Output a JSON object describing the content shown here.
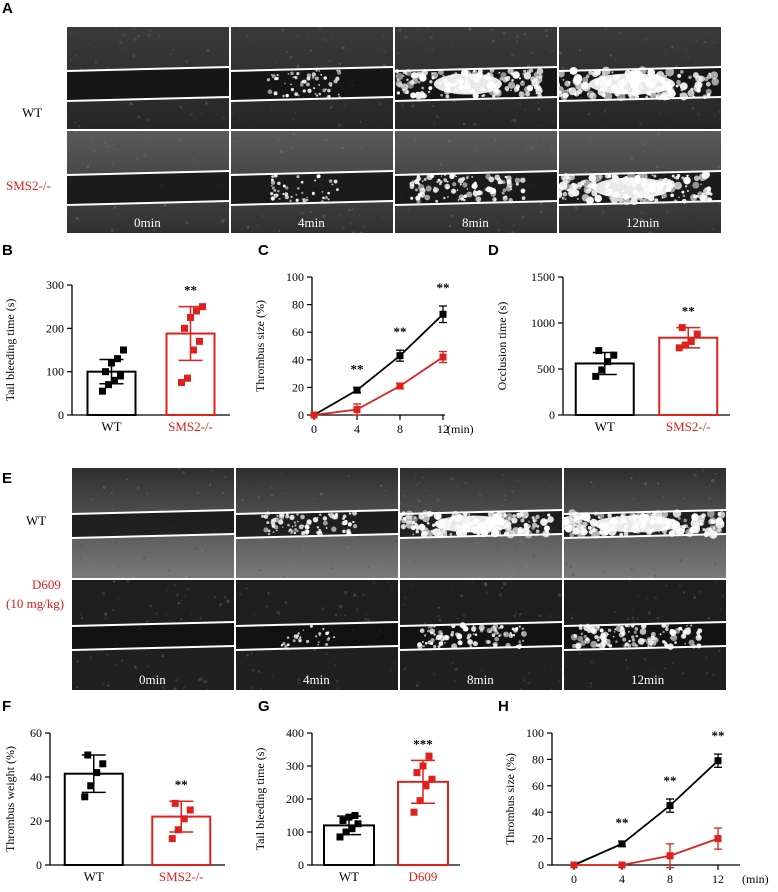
{
  "panels": {
    "A": {
      "letter": "A",
      "rows": [
        {
          "label": "WT",
          "color": "#000000"
        },
        {
          "label": "SMS2-/-",
          "color": "#e0201b"
        }
      ],
      "timepoints": [
        "0min",
        "4min",
        "8min",
        "12min"
      ],
      "thrombus_level": [
        [
          0,
          0.2,
          0.75,
          0.95
        ],
        [
          0,
          0.15,
          0.5,
          0.85
        ]
      ]
    },
    "E": {
      "letter": "E",
      "rows": [
        {
          "label": "WT",
          "color": "#000000"
        },
        {
          "label": "D609",
          "label2": "(10 mg/kg)",
          "color": "#e0201b"
        }
      ],
      "timepoints": [
        "0min",
        "4min",
        "8min",
        "12min"
      ],
      "thrombus_level": [
        [
          0,
          0.35,
          0.85,
          0.95
        ],
        [
          0,
          0.05,
          0.45,
          0.6
        ]
      ]
    }
  },
  "chart_data": [
    {
      "id": "B",
      "letter": "B",
      "type": "bar",
      "categories": [
        "WT",
        "SMS2-/-"
      ],
      "category_colors": [
        "#000000",
        "#e0201b"
      ],
      "values": [
        100,
        188
      ],
      "errors": [
        28,
        62
      ],
      "points": [
        [
          55,
          70,
          80,
          90,
          100,
          120,
          130,
          150
        ],
        [
          75,
          85,
          150,
          170,
          200,
          225,
          240,
          250
        ]
      ],
      "sig": "**",
      "ylabel": "Tail bleeding time (s)",
      "ylim": [
        0,
        300
      ],
      "yticks": [
        0,
        100,
        200,
        300
      ]
    },
    {
      "id": "C",
      "letter": "C",
      "type": "line",
      "x": [
        0,
        4,
        8,
        12
      ],
      "xticks": [
        "0",
        "4",
        "8",
        "12"
      ],
      "xunit": "(min)",
      "series": [
        {
          "color": "#000000",
          "values": [
            0,
            18,
            43,
            73
          ],
          "errors": [
            0,
            2,
            4,
            6
          ]
        },
        {
          "color": "#e0201b",
          "values": [
            0,
            4,
            21,
            42
          ],
          "errors": [
            0,
            4,
            2,
            4
          ]
        }
      ],
      "sig": [
        "",
        "**",
        "**",
        "**"
      ],
      "ylabel": "Thrombus size (%)",
      "ylim": [
        0,
        100
      ],
      "yticks": [
        0,
        20,
        40,
        60,
        80,
        100
      ]
    },
    {
      "id": "D",
      "letter": "D",
      "type": "bar",
      "categories": [
        "WT",
        "SMS2-/-"
      ],
      "category_colors": [
        "#000000",
        "#e0201b"
      ],
      "values": [
        560,
        840
      ],
      "errors": [
        120,
        110
      ],
      "points": [
        [
          420,
          490,
          580,
          650,
          700
        ],
        [
          730,
          760,
          800,
          880,
          950
        ]
      ],
      "sig": "**",
      "ylabel": "Occlusion time (s)",
      "ylim": [
        0,
        1500
      ],
      "yticks": [
        0,
        500,
        1000,
        1500
      ]
    },
    {
      "id": "F",
      "letter": "F",
      "type": "bar",
      "categories": [
        "WT",
        "SMS2-/-"
      ],
      "category_colors": [
        "#000000",
        "#e0201b"
      ],
      "values": [
        41.5,
        22
      ],
      "errors": [
        8.5,
        7
      ],
      "points": [
        [
          31,
          36,
          42,
          46,
          50
        ],
        [
          12,
          16,
          21,
          25,
          28
        ]
      ],
      "sig": "**",
      "ylabel": "Thrombus weight (%)",
      "ylim": [
        0,
        60
      ],
      "yticks": [
        0,
        20,
        40,
        60
      ]
    },
    {
      "id": "G",
      "letter": "G",
      "type": "bar",
      "categories": [
        "WT",
        "D609"
      ],
      "category_colors": [
        "#000000",
        "#e0201b"
      ],
      "values": [
        120,
        252
      ],
      "errors": [
        28,
        65
      ],
      "points": [
        [
          85,
          100,
          110,
          125,
          135,
          145,
          150
        ],
        [
          160,
          195,
          240,
          260,
          280,
          300,
          330
        ]
      ],
      "sig": "***",
      "ylabel": "Tail bleeding time (s)",
      "ylim": [
        0,
        400
      ],
      "yticks": [
        0,
        100,
        200,
        300,
        400
      ]
    },
    {
      "id": "H",
      "letter": "H",
      "type": "line",
      "x": [
        0,
        4,
        8,
        12
      ],
      "xticks": [
        "0",
        "4",
        "8",
        "12"
      ],
      "xunit": "(min)",
      "series": [
        {
          "color": "#000000",
          "values": [
            0,
            16,
            45,
            79
          ],
          "errors": [
            0,
            2,
            5,
            5
          ]
        },
        {
          "color": "#e0201b",
          "values": [
            0,
            0,
            7,
            20
          ],
          "errors": [
            0,
            0,
            9,
            8
          ]
        }
      ],
      "sig": [
        "",
        "**",
        "**",
        "**"
      ],
      "ylabel": "Thrombus size (%)",
      "ylim": [
        0,
        100
      ],
      "yticks": [
        0,
        20,
        40,
        60,
        80,
        100
      ]
    }
  ]
}
